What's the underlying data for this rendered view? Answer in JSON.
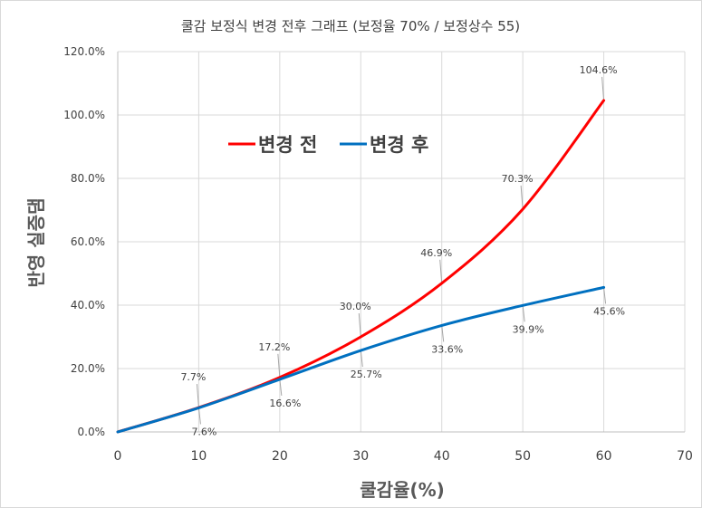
{
  "chart_data": {
    "type": "line",
    "title": "쿨감 보정식 변경 전후 그래프 (보정율 70% / 보정상수 55)",
    "xlabel": "쿨감율(%)",
    "ylabel": "반영 실증댐",
    "xlim": [
      0,
      70
    ],
    "ylim": [
      0,
      120
    ],
    "x_ticks": [
      "0",
      "10",
      "20",
      "30",
      "40",
      "50",
      "60",
      "70"
    ],
    "y_ticks": [
      "0.0%",
      "20.0%",
      "40.0%",
      "60.0%",
      "80.0%",
      "100.0%",
      "120.0%"
    ],
    "grid": true,
    "legend_position": "top-left",
    "series": [
      {
        "name": "변경 전",
        "color": "#ff0000",
        "x": [
          0,
          10,
          20,
          30,
          40,
          50,
          60
        ],
        "values": [
          0,
          7.7,
          17.2,
          30.0,
          46.9,
          70.3,
          104.6
        ],
        "labels": [
          "7.7%",
          "17.2%",
          "30.0%",
          "46.9%",
          "70.3%",
          "104.6%"
        ]
      },
      {
        "name": "변경 후",
        "color": "#0070c0",
        "x": [
          0,
          10,
          20,
          30,
          40,
          50,
          60
        ],
        "values": [
          0,
          7.6,
          16.6,
          25.7,
          33.6,
          39.9,
          45.6
        ],
        "labels": [
          "7.6%",
          "16.6%",
          "25.7%",
          "33.6%",
          "39.9%",
          "45.6%"
        ]
      }
    ]
  }
}
